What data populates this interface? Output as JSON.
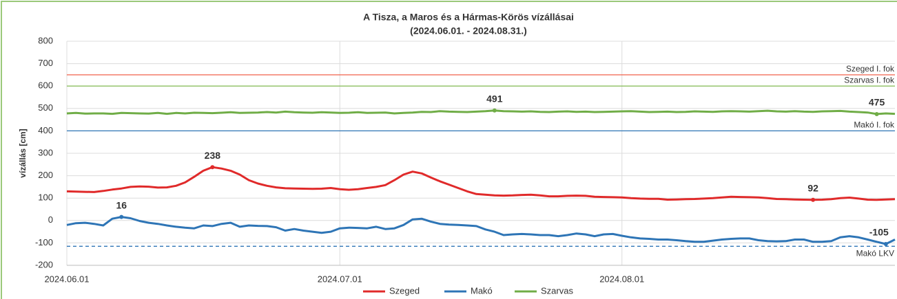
{
  "chart_data": {
    "type": "line",
    "title": "A Tisza, a Maros és a Hármas-Körös vízállásai",
    "subtitle": "(2024.06.01. - 2024.08.31.)",
    "y_label": "vízállás [cm]",
    "categories": [
      "2024.06.01",
      null,
      null,
      null,
      null,
      null,
      null,
      null,
      null,
      null,
      null,
      null,
      null,
      null,
      null,
      null,
      null,
      null,
      null,
      null,
      null,
      null,
      null,
      null,
      null,
      null,
      null,
      null,
      null,
      null,
      "2024.07.01",
      null,
      null,
      null,
      null,
      null,
      null,
      null,
      null,
      null,
      null,
      null,
      null,
      null,
      null,
      null,
      null,
      null,
      null,
      null,
      null,
      null,
      null,
      null,
      null,
      null,
      null,
      null,
      null,
      null,
      null,
      "2024.08.01",
      null,
      null,
      null,
      null,
      null,
      null,
      null,
      null,
      null,
      null,
      null,
      null,
      null,
      null,
      null,
      null,
      null,
      null,
      null,
      null,
      null,
      null,
      null,
      null,
      null,
      null,
      null,
      null,
      null,
      null
    ],
    "ylim": [
      -200,
      800
    ],
    "yticks": [
      -200,
      -100,
      0,
      100,
      200,
      300,
      400,
      500,
      600,
      700,
      800
    ],
    "grid": true,
    "legend": "bottom",
    "series": [
      {
        "name": "Szeged",
        "color": "#e02a2a",
        "marked_points": [
          16,
          82
        ],
        "values": [
          130,
          129,
          128,
          127,
          132,
          138,
          143,
          150,
          152,
          151,
          147,
          148,
          155,
          170,
          195,
          222,
          238,
          232,
          222,
          205,
          180,
          165,
          155,
          148,
          144,
          143,
          142,
          141,
          142,
          145,
          140,
          137,
          140,
          145,
          150,
          158,
          180,
          205,
          218,
          210,
          192,
          175,
          160,
          145,
          130,
          118,
          115,
          112,
          111,
          112,
          114,
          115,
          112,
          108,
          108,
          110,
          111,
          110,
          106,
          105,
          104,
          103,
          100,
          98,
          97,
          97,
          93,
          94,
          95,
          96,
          98,
          100,
          103,
          106,
          105,
          104,
          103,
          100,
          96,
          95,
          94,
          93,
          92,
          93,
          95,
          100,
          102,
          98,
          93,
          92,
          94,
          95
        ]
      },
      {
        "name": "Makó",
        "color": "#2e75b6",
        "marked_points": [
          6,
          90
        ],
        "values": [
          -20,
          -12,
          -10,
          -15,
          -22,
          8,
          16,
          10,
          -2,
          -10,
          -15,
          -22,
          -28,
          -32,
          -35,
          -22,
          -25,
          -15,
          -10,
          -28,
          -22,
          -24,
          -25,
          -30,
          -45,
          -38,
          -45,
          -50,
          -55,
          -50,
          -35,
          -32,
          -33,
          -35,
          -28,
          -38,
          -35,
          -20,
          5,
          8,
          -5,
          -15,
          -18,
          -20,
          -22,
          -25,
          -40,
          -50,
          -65,
          -62,
          -60,
          -62,
          -65,
          -65,
          -70,
          -65,
          -58,
          -62,
          -70,
          -62,
          -60,
          -68,
          -75,
          -80,
          -82,
          -85,
          -85,
          -88,
          -92,
          -95,
          -95,
          -90,
          -85,
          -82,
          -80,
          -80,
          -88,
          -92,
          -93,
          -92,
          -85,
          -85,
          -95,
          -95,
          -92,
          -75,
          -70,
          -75,
          -85,
          -95,
          -105,
          -85
        ]
      },
      {
        "name": "Szarvas",
        "color": "#70ad47",
        "marked_points": [
          47,
          89
        ],
        "values": [
          478,
          480,
          477,
          478,
          478,
          476,
          480,
          479,
          478,
          477,
          480,
          476,
          480,
          478,
          481,
          480,
          479,
          481,
          483,
          480,
          481,
          482,
          484,
          482,
          486,
          483,
          482,
          481,
          483,
          482,
          480,
          481,
          483,
          480,
          481,
          482,
          478,
          480,
          482,
          485,
          484,
          488,
          486,
          485,
          484,
          486,
          488,
          491,
          488,
          487,
          486,
          487,
          485,
          484,
          486,
          487,
          485,
          486,
          484,
          485,
          486,
          487,
          488,
          486,
          484,
          485,
          486,
          484,
          485,
          487,
          486,
          485,
          487,
          488,
          487,
          486,
          488,
          490,
          487,
          486,
          488,
          486,
          485,
          487,
          488,
          489,
          486,
          484,
          482,
          475,
          478,
          476
        ]
      }
    ],
    "reference_lines": [
      {
        "name": "Szeged I. fok",
        "value": 650,
        "color": "#f0604c",
        "dashed": false
      },
      {
        "name": "Szarvas I. fok",
        "value": 600,
        "color": "#8cc060",
        "dashed": false
      },
      {
        "name": "Makó I. fok",
        "value": 400,
        "color": "#2e75b6",
        "dashed": false
      },
      {
        "name": "Makó LKV",
        "value": -115,
        "color": "#2e75b6",
        "dashed": true
      }
    ]
  }
}
